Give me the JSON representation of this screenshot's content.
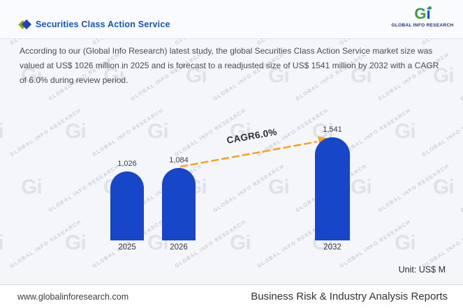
{
  "header": {
    "title": "Securities Class Action Service",
    "logo": {
      "letter_g": "G",
      "letter_i": "i",
      "subtext": "GLOBAL INFO RESEARCH"
    }
  },
  "description": "According to our (Global Info Research) latest study, the global Securities Class Action Service market size was valued at US$ 1026 million in 2025 and is forecast to a readjusted size of US$ 1541 million by 2032 with a CAGR of 6.0% during review period.",
  "chart_data": {
    "type": "bar",
    "title": "Securities Class Action Service",
    "categories": [
      "2025",
      "2026",
      "2032"
    ],
    "values": [
      1026,
      1084,
      1541
    ],
    "value_labels": [
      "1,026",
      "1,084",
      "1,541"
    ],
    "annotation": "CAGR6.0%",
    "unit_label": "Unit: US$ M",
    "ylabel": "",
    "xlabel": "",
    "ylim": [
      0,
      1600
    ],
    "grid": false,
    "legend": "none",
    "bar_color": "#1746c9",
    "arrow_color": "#f7a424"
  },
  "watermark": {
    "logo": "Gi",
    "text": "GLOBAL INFO RESEARCH"
  },
  "footer": {
    "website": "www.globalinforesearch.com",
    "tagline": "Business Risk & Industry Analysis Reports"
  }
}
